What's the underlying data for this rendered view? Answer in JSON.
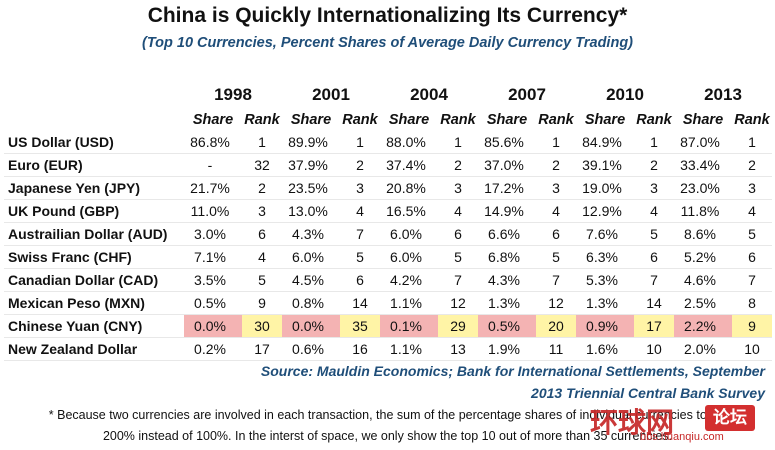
{
  "chart_data": {
    "type": "table",
    "title": "China is Quickly Internationalizing Its Currency*",
    "subtitle": "(Top 10 Currencies, Percent Shares of Average Daily Currency Trading)",
    "years": [
      "1998",
      "2001",
      "2004",
      "2007",
      "2010",
      "2013"
    ],
    "column_labels": {
      "share": "Share",
      "rank": "Rank"
    },
    "rows": [
      {
        "name": "US Dollar (USD)",
        "cells": [
          [
            "86.8%",
            "1"
          ],
          [
            "89.9%",
            "1"
          ],
          [
            "88.0%",
            "1"
          ],
          [
            "85.6%",
            "1"
          ],
          [
            "84.9%",
            "1"
          ],
          [
            "87.0%",
            "1"
          ]
        ]
      },
      {
        "name": "Euro (EUR)",
        "cells": [
          [
            "-",
            "32"
          ],
          [
            "37.9%",
            "2"
          ],
          [
            "37.4%",
            "2"
          ],
          [
            "37.0%",
            "2"
          ],
          [
            "39.1%",
            "2"
          ],
          [
            "33.4%",
            "2"
          ]
        ]
      },
      {
        "name": "Japanese Yen (JPY)",
        "cells": [
          [
            "21.7%",
            "2"
          ],
          [
            "23.5%",
            "3"
          ],
          [
            "20.8%",
            "3"
          ],
          [
            "17.2%",
            "3"
          ],
          [
            "19.0%",
            "3"
          ],
          [
            "23.0%",
            "3"
          ]
        ]
      },
      {
        "name": "UK Pound (GBP)",
        "cells": [
          [
            "11.0%",
            "3"
          ],
          [
            "13.0%",
            "4"
          ],
          [
            "16.5%",
            "4"
          ],
          [
            "14.9%",
            "4"
          ],
          [
            "12.9%",
            "4"
          ],
          [
            "11.8%",
            "4"
          ]
        ]
      },
      {
        "name": "Austrailian Dollar (AUD)",
        "cells": [
          [
            "3.0%",
            "6"
          ],
          [
            "4.3%",
            "7"
          ],
          [
            "6.0%",
            "6"
          ],
          [
            "6.6%",
            "6"
          ],
          [
            "7.6%",
            "5"
          ],
          [
            "8.6%",
            "5"
          ]
        ]
      },
      {
        "name": "Swiss Franc (CHF)",
        "cells": [
          [
            "7.1%",
            "4"
          ],
          [
            "6.0%",
            "5"
          ],
          [
            "6.0%",
            "5"
          ],
          [
            "6.8%",
            "5"
          ],
          [
            "6.3%",
            "6"
          ],
          [
            "5.2%",
            "6"
          ]
        ]
      },
      {
        "name": "Canadian Dollar (CAD)",
        "cells": [
          [
            "3.5%",
            "5"
          ],
          [
            "4.5%",
            "6"
          ],
          [
            "4.2%",
            "7"
          ],
          [
            "4.3%",
            "7"
          ],
          [
            "5.3%",
            "7"
          ],
          [
            "4.6%",
            "7"
          ]
        ]
      },
      {
        "name": "Mexican Peso (MXN)",
        "cells": [
          [
            "0.5%",
            "9"
          ],
          [
            "0.8%",
            "14"
          ],
          [
            "1.1%",
            "12"
          ],
          [
            "1.3%",
            "12"
          ],
          [
            "1.3%",
            "14"
          ],
          [
            "2.5%",
            "8"
          ]
        ]
      },
      {
        "name": "Chinese Yuan (CNY)",
        "highlight": true,
        "cells": [
          [
            "0.0%",
            "30"
          ],
          [
            "0.0%",
            "35"
          ],
          [
            "0.1%",
            "29"
          ],
          [
            "0.5%",
            "20"
          ],
          [
            "0.9%",
            "17"
          ],
          [
            "2.2%",
            "9"
          ]
        ]
      },
      {
        "name": "New Zealand Dollar",
        "cells": [
          [
            "0.2%",
            "17"
          ],
          [
            "0.6%",
            "16"
          ],
          [
            "1.1%",
            "13"
          ],
          [
            "1.9%",
            "11"
          ],
          [
            "1.6%",
            "10"
          ],
          [
            "2.0%",
            "10"
          ]
        ]
      }
    ],
    "highlight_colors": {
      "share": "#f4b3b3",
      "rank": "#fff4a6"
    },
    "source_line1": "Source: Mauldin Economics; Bank for International Settlements, September",
    "source_line2": "2013 Triennial Central Bank Survey",
    "footnote_line1": "* Because two currencies are involved in each transaction, the sum of the percentage shares of individual currencies totals",
    "footnote_line2": "200% instead of 100%. In the interst of space, we only show the top 10  out of more than 35 currencies."
  },
  "watermark": {
    "logo_text": "环球网",
    "badge_text": "论坛",
    "url_text": "bbs.huanqiu.com"
  }
}
